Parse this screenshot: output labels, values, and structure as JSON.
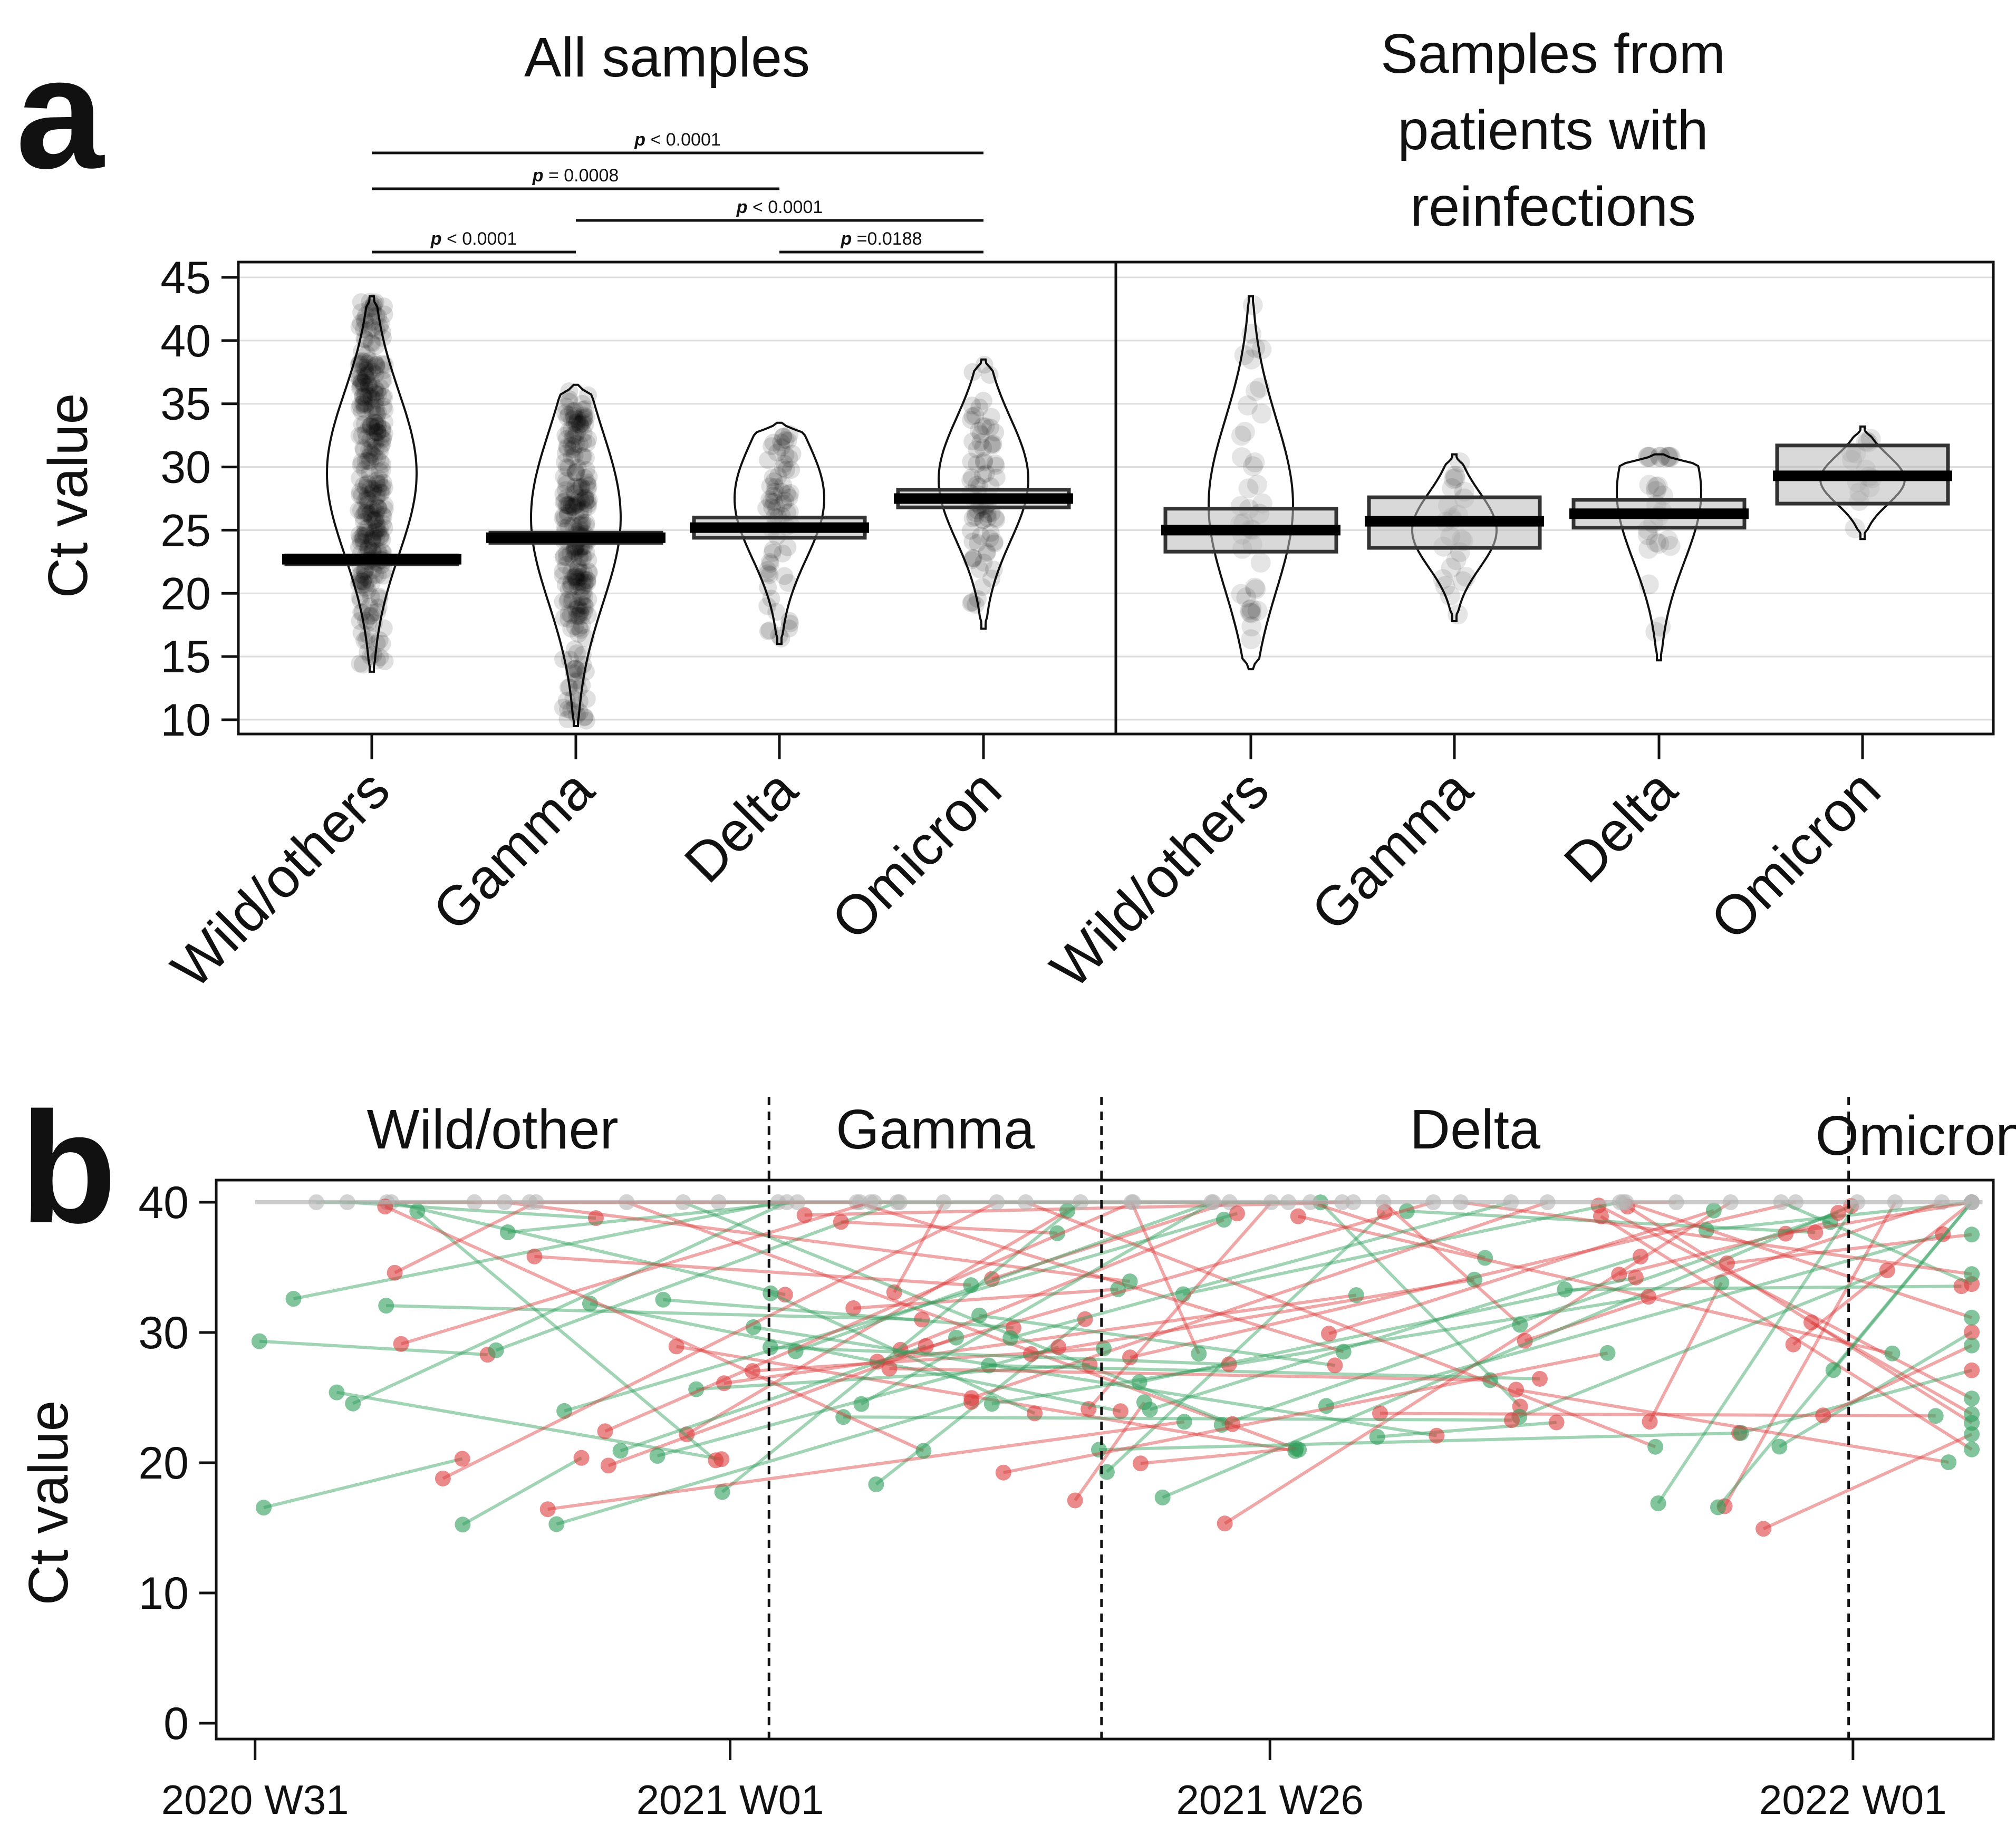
{
  "panel_a": {
    "letter": "a",
    "title_left": "All samples",
    "title_right_lines": [
      "Samples from",
      "patients with",
      "reinfections"
    ],
    "ylabel": "Ct value",
    "comparisons": [
      {
        "from": "Wild/others",
        "to": "Omicron",
        "label": "< 0.0001"
      },
      {
        "from": "Wild/others",
        "to": "Delta",
        "label": "= 0.0008"
      },
      {
        "from": "Gamma",
        "to": "Omicron",
        "label": "< 0.0001"
      },
      {
        "from": "Wild/others",
        "to": "Gamma",
        "label": "< 0.0001"
      },
      {
        "from": "Delta",
        "to": "Omicron",
        "label": "=0.0188"
      }
    ],
    "p_symbol": "p"
  },
  "panel_b": {
    "letter": "b",
    "ylabel": "Ct value",
    "periods": [
      "Wild/other",
      "Gamma",
      "Delta",
      "Omicron"
    ],
    "date_ticks": [
      "2020 W31",
      "2021 W01",
      "2021 W26",
      "2022 W01"
    ]
  },
  "chart_data": [
    {
      "type": "violin",
      "title": "All samples",
      "ylabel": "Ct value",
      "ylim": [
        10,
        45
      ],
      "yticks": [
        10,
        15,
        20,
        25,
        30,
        35,
        40,
        45
      ],
      "categories": [
        "Wild/others",
        "Gamma",
        "Delta",
        "Omicron"
      ],
      "median": [
        22.7,
        24.4,
        25.2,
        27.5
      ],
      "ci": [
        [
          22.3,
          23.0
        ],
        [
          24.0,
          24.8
        ],
        [
          24.4,
          26.0
        ],
        [
          26.8,
          28.2
        ]
      ],
      "range": [
        [
          13.8,
          43.5
        ],
        [
          9.5,
          36.5
        ],
        [
          16.0,
          33.5
        ],
        [
          17.2,
          38.5
        ]
      ],
      "peak": [
        29.5,
        26.0,
        27.5,
        29.0
      ]
    },
    {
      "type": "violin",
      "title": "Samples from patients with reinfections",
      "ylabel": "Ct value",
      "ylim": [
        10,
        45
      ],
      "yticks": [
        10,
        15,
        20,
        25,
        30,
        35,
        40,
        45
      ],
      "categories": [
        "Wild/others",
        "Gamma",
        "Delta",
        "Omicron"
      ],
      "median": [
        25.0,
        25.7,
        26.3,
        29.3
      ],
      "ci": [
        [
          23.3,
          26.7
        ],
        [
          23.6,
          27.6
        ],
        [
          25.2,
          27.4
        ],
        [
          27.1,
          31.7
        ]
      ],
      "range": [
        [
          14.0,
          43.5
        ],
        [
          17.8,
          31.0
        ],
        [
          14.7,
          31.0
        ],
        [
          24.3,
          33.2
        ]
      ],
      "peak": [
        27.0,
        25.0,
        28.0,
        29.0
      ]
    },
    {
      "type": "line",
      "title": "",
      "ylabel": "Ct value",
      "ylim": [
        0,
        40
      ],
      "yticks": [
        0,
        10,
        20,
        30,
        40
      ],
      "x_unit": "weeks since 2020 W31",
      "xlim": [
        -1.8,
        80.5
      ],
      "x_tick_positions": [
        0,
        22,
        47,
        74
      ],
      "x_tick_labels": [
        "2020 W31",
        "2021 W01",
        "2021 W26",
        "2022 W01"
      ],
      "period_boundaries": [
        23.8,
        39.2,
        73.8
      ],
      "period_labels": [
        "Wild/other",
        "Gamma",
        "Delta",
        "Omicron"
      ],
      "series_colors": {
        "first_infection": "#2e9e5b",
        "reinfection": "#dc3c3c",
        "negative": "#b5b5b5"
      },
      "note": "Each segment links consecutive samples of one patient; green = first infection sample, red = reinfection sample; approximately 110 patient trajectories are drawn (approximate reading of the figure)."
    }
  ]
}
